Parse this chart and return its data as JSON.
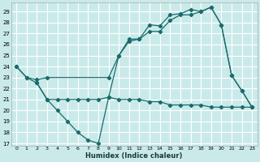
{
  "xlabel": "Humidex (Indice chaleur)",
  "bg_color": "#caeaea",
  "grid_color": "#b0d8d8",
  "line_color": "#1a6b6b",
  "xlim": [
    -0.5,
    23.5
  ],
  "ylim": [
    16.8,
    29.8
  ],
  "xticks": [
    0,
    1,
    2,
    3,
    4,
    5,
    6,
    7,
    8,
    9,
    10,
    11,
    12,
    13,
    14,
    15,
    16,
    17,
    18,
    19,
    20,
    21,
    22,
    23
  ],
  "yticks": [
    17,
    18,
    19,
    20,
    21,
    22,
    23,
    24,
    25,
    26,
    27,
    28,
    29
  ],
  "s1_x": [
    0,
    1,
    2,
    3,
    4,
    5,
    6,
    7,
    8,
    9,
    10,
    11,
    12,
    13,
    14,
    15,
    16,
    17,
    18,
    19,
    20,
    21,
    22,
    23
  ],
  "s1_y": [
    24.0,
    23.0,
    22.5,
    21.0,
    20.0,
    19.0,
    18.0,
    17.3,
    17.0,
    21.2,
    25.0,
    26.5,
    26.5,
    27.8,
    27.7,
    28.7,
    28.8,
    29.2,
    29.0,
    29.4,
    27.8,
    23.2,
    21.8,
    20.3
  ],
  "s2_x": [
    0,
    1,
    2,
    3,
    9,
    10,
    11,
    12,
    13,
    14,
    15,
    16,
    17,
    18,
    19,
    20,
    21,
    22,
    23
  ],
  "s2_y": [
    24.0,
    23.0,
    22.8,
    23.0,
    23.0,
    25.0,
    26.3,
    26.5,
    27.2,
    27.2,
    28.2,
    28.7,
    28.7,
    29.0,
    29.4,
    27.8,
    23.2,
    21.8,
    20.3
  ],
  "s3_x": [
    2,
    3,
    4,
    5,
    6,
    7,
    8,
    9,
    10,
    11,
    12,
    13,
    14,
    15,
    16,
    17,
    18,
    19,
    20,
    21,
    22,
    23
  ],
  "s3_y": [
    22.5,
    21.0,
    21.0,
    21.0,
    21.0,
    21.0,
    21.0,
    21.2,
    21.0,
    21.0,
    21.0,
    20.8,
    20.8,
    20.5,
    20.5,
    20.5,
    20.5,
    20.3,
    20.3,
    20.3,
    20.3,
    20.3
  ]
}
